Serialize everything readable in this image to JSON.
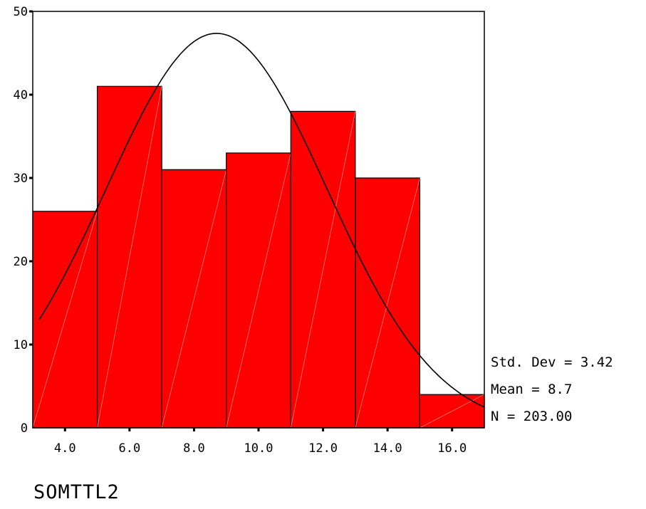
{
  "chart_data": {
    "type": "bar",
    "title": "",
    "xlabel": "SOMTTL2",
    "ylabel": "",
    "bins": [
      {
        "from": 3.0,
        "to": 5.0,
        "count": 26
      },
      {
        "from": 5.0,
        "to": 7.0,
        "count": 41
      },
      {
        "from": 7.0,
        "to": 9.0,
        "count": 31
      },
      {
        "from": 9.0,
        "to": 11.0,
        "count": 33
      },
      {
        "from": 11.0,
        "to": 13.0,
        "count": 38
      },
      {
        "from": 13.0,
        "to": 15.0,
        "count": 30
      },
      {
        "from": 15.0,
        "to": 17.0,
        "count": 4
      }
    ],
    "xlim": [
      3.0,
      17.0
    ],
    "ylim": [
      0,
      50
    ],
    "x_ticks": [
      "4.0",
      "6.0",
      "8.0",
      "10.0",
      "12.0",
      "14.0",
      "16.0"
    ],
    "x_tick_values": [
      4,
      6,
      8,
      10,
      12,
      14,
      16
    ],
    "y_ticks": [
      "0",
      "10",
      "20",
      "30",
      "40",
      "50"
    ],
    "y_tick_values": [
      0,
      10,
      20,
      30,
      40,
      50
    ],
    "normal_curve": {
      "mean": 8.7,
      "std_dev": 3.42,
      "n": 203,
      "bin_width": 2
    },
    "stats": [
      "Std. Dev = 3.42",
      "Mean = 8.7",
      "N = 203.00"
    ],
    "bar_color": "#ff0000",
    "grid": false,
    "legend": "none"
  }
}
